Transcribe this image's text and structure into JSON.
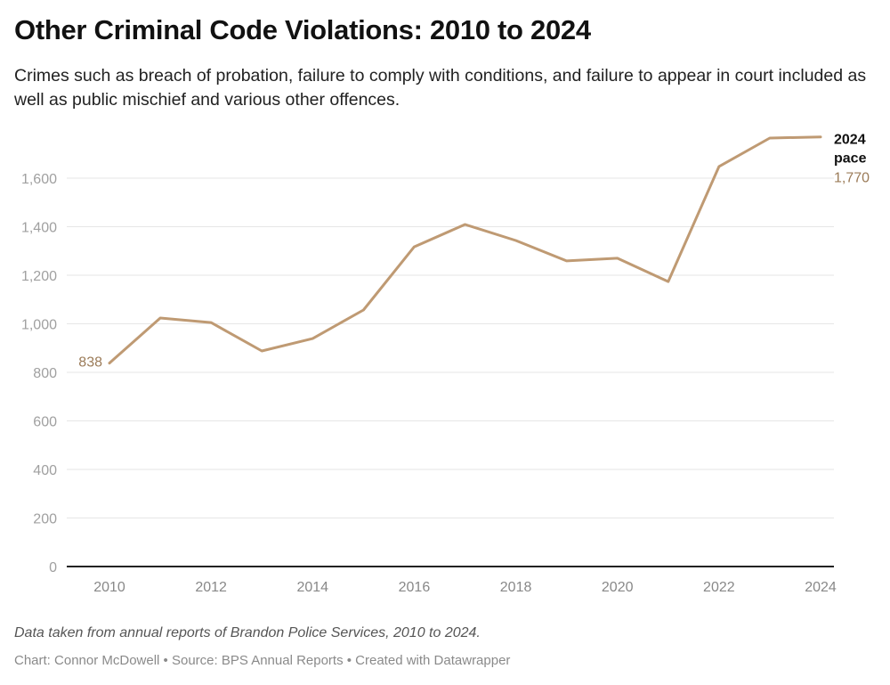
{
  "header": {
    "title": "Other Criminal Code Violations: 2010 to 2024",
    "subtitle": "Crimes such as breach of probation, failure to comply with conditions, and failure to appear in court included as well as public mischief and various other offences."
  },
  "footer": {
    "notes": "Data taken from annual reports of Brandon Police Services, 2010 to 2024.",
    "byline": "Chart: Connor McDowell • Source: BPS Annual Reports • Created with Datawrapper"
  },
  "chart_data": {
    "type": "line",
    "title": "Other Criminal Code Violations: 2010 to 2024",
    "xlabel": "",
    "ylabel": "",
    "x": [
      2010,
      2011,
      2012,
      2013,
      2014,
      2015,
      2016,
      2017,
      2018,
      2019,
      2020,
      2021,
      2022,
      2023,
      2024
    ],
    "series": [
      {
        "name": "Other Criminal Code Violations",
        "color": "#bf9a73",
        "values": [
          838,
          1024,
          1005,
          888,
          939,
          1057,
          1317,
          1409,
          1343,
          1259,
          1270,
          1174,
          1648,
          1765,
          1770
        ]
      }
    ],
    "xlim": [
      2010,
      2024
    ],
    "ylim": [
      0,
      1600
    ],
    "x_ticks": [
      2010,
      2012,
      2014,
      2016,
      2018,
      2020,
      2022,
      2024
    ],
    "x_tick_labels": [
      "2010",
      "2012",
      "2014",
      "2016",
      "2018",
      "2020",
      "2022",
      "2024"
    ],
    "y_ticks": [
      0,
      200,
      400,
      600,
      800,
      1000,
      1200,
      1400,
      1600
    ],
    "y_tick_labels": [
      "0",
      "200",
      "400",
      "600",
      "800",
      "1,000",
      "1,200",
      "1,400",
      "1,600"
    ],
    "grid": true,
    "legend": "none",
    "annotations": {
      "start_value": "838",
      "end_label_line1": "2024",
      "end_label_line2": "pace",
      "end_value": "1,770"
    }
  }
}
